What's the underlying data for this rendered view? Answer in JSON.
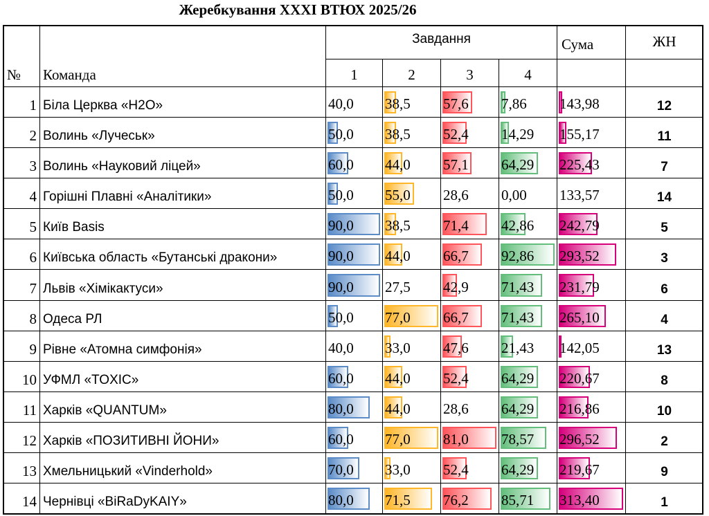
{
  "title": "Жеребкування XXXI ВТЮХ 2025/26",
  "table": {
    "header": {
      "tasks": "Завдання",
      "sum": "Сума",
      "rank": "ЖН",
      "number": "№",
      "team": "Команда",
      "task_numbers": [
        1,
        2,
        3,
        4
      ]
    },
    "bar_colors": [
      "#5b8cc8",
      "#ffb628",
      "#ff555a",
      "#63be7b",
      "#d6007b"
    ],
    "rows": [
      {
        "number": 1,
        "team": "Біла Церква «H2O»",
        "scores": [
          {
            "value": 40.0,
            "label": "40,0"
          },
          {
            "value": 38.5,
            "label": "38,5"
          },
          {
            "value": 57.6,
            "label": "57,6"
          },
          {
            "value": 7.86,
            "label": "7,86"
          }
        ],
        "sum": {
          "value": 143.98,
          "label": "143,98"
        },
        "rank": 12
      },
      {
        "number": 2,
        "team": "Волинь «Лучеськ»",
        "scores": [
          {
            "value": 50.0,
            "label": "50,0"
          },
          {
            "value": 38.5,
            "label": "38,5"
          },
          {
            "value": 52.4,
            "label": "52,4"
          },
          {
            "value": 14.29,
            "label": "14,29"
          }
        ],
        "sum": {
          "value": 155.17,
          "label": "155,17"
        },
        "rank": 11
      },
      {
        "number": 3,
        "team": "Волинь «Науковий ліцей»",
        "scores": [
          {
            "value": 60.0,
            "label": "60,0"
          },
          {
            "value": 44.0,
            "label": "44,0"
          },
          {
            "value": 57.1,
            "label": "57,1"
          },
          {
            "value": 64.29,
            "label": "64,29"
          }
        ],
        "sum": {
          "value": 225.43,
          "label": "225,43"
        },
        "rank": 7
      },
      {
        "number": 4,
        "team": "Горішні Плавні «Аналітики»",
        "scores": [
          {
            "value": 50.0,
            "label": "50,0"
          },
          {
            "value": 55.0,
            "label": "55,0"
          },
          {
            "value": 28.6,
            "label": "28,6"
          },
          {
            "value": 0,
            "label": "0,00"
          }
        ],
        "sum": {
          "value": 133.57,
          "label": "133,57"
        },
        "rank": 14
      },
      {
        "number": 5,
        "team": "Київ Basis",
        "scores": [
          {
            "value": 90.0,
            "label": "90,0"
          },
          {
            "value": 38.5,
            "label": "38,5"
          },
          {
            "value": 71.4,
            "label": "71,4"
          },
          {
            "value": 42.86,
            "label": "42,86"
          }
        ],
        "sum": {
          "value": 242.79,
          "label": "242,79"
        },
        "rank": 5
      },
      {
        "number": 6,
        "team": "Київська область «Бутанські дракони»",
        "scores": [
          {
            "value": 90.0,
            "label": "90,0"
          },
          {
            "value": 44.0,
            "label": "44,0"
          },
          {
            "value": 66.7,
            "label": "66,7"
          },
          {
            "value": 92.86,
            "label": "92,86"
          }
        ],
        "sum": {
          "value": 293.52,
          "label": "293,52"
        },
        "rank": 3
      },
      {
        "number": 7,
        "team": "Львів «Хімікактуси»",
        "scores": [
          {
            "value": 90.0,
            "label": "90,0"
          },
          {
            "value": 27.5,
            "label": "27,5"
          },
          {
            "value": 42.9,
            "label": "42,9"
          },
          {
            "value": 71.43,
            "label": "71,43"
          }
        ],
        "sum": {
          "value": 231.79,
          "label": "231,79"
        },
        "rank": 6
      },
      {
        "number": 8,
        "team": "Одеса РЛ",
        "scores": [
          {
            "value": 50.0,
            "label": "50,0"
          },
          {
            "value": 77.0,
            "label": "77,0"
          },
          {
            "value": 66.7,
            "label": "66,7"
          },
          {
            "value": 71.43,
            "label": "71,43"
          }
        ],
        "sum": {
          "value": 265.1,
          "label": "265,10"
        },
        "rank": 4
      },
      {
        "number": 9,
        "team": "Рівне «Атомна симфонія»",
        "scores": [
          {
            "value": 40.0,
            "label": "40,0"
          },
          {
            "value": 33.0,
            "label": "33,0"
          },
          {
            "value": 47.6,
            "label": "47,6"
          },
          {
            "value": 21.43,
            "label": "21,43"
          }
        ],
        "sum": {
          "value": 142.05,
          "label": "142,05"
        },
        "rank": 13
      },
      {
        "number": 10,
        "team": "УФМЛ «TOXIC»",
        "scores": [
          {
            "value": 60.0,
            "label": "60,0"
          },
          {
            "value": 44.0,
            "label": "44,0"
          },
          {
            "value": 52.4,
            "label": "52,4"
          },
          {
            "value": 64.29,
            "label": "64,29"
          }
        ],
        "sum": {
          "value": 220.67,
          "label": "220,67"
        },
        "rank": 8
      },
      {
        "number": 11,
        "team": "Харків «QUANTUM»",
        "scores": [
          {
            "value": 80.0,
            "label": "80,0"
          },
          {
            "value": 44.0,
            "label": "44,0"
          },
          {
            "value": 28.6,
            "label": "28,6"
          },
          {
            "value": 64.29,
            "label": "64,29"
          }
        ],
        "sum": {
          "value": 216.86,
          "label": "216,86"
        },
        "rank": 10
      },
      {
        "number": 12,
        "team": "Харків «ПОЗИТИВНІ ЙОНИ»",
        "scores": [
          {
            "value": 60.0,
            "label": "60,0"
          },
          {
            "value": 77.0,
            "label": "77,0"
          },
          {
            "value": 81.0,
            "label": "81,0"
          },
          {
            "value": 78.57,
            "label": "78,57"
          }
        ],
        "sum": {
          "value": 296.52,
          "label": "296,52"
        },
        "rank": 2
      },
      {
        "number": 13,
        "team": "Хмельницький «Vinderhold»",
        "scores": [
          {
            "value": 70.0,
            "label": "70,0"
          },
          {
            "value": 33.0,
            "label": "33,0"
          },
          {
            "value": 52.4,
            "label": "52,4"
          },
          {
            "value": 64.29,
            "label": "64,29"
          }
        ],
        "sum": {
          "value": 219.67,
          "label": "219,67"
        },
        "rank": 9
      },
      {
        "number": 14,
        "team": "Чернівці «BiRaDyKAIY»",
        "scores": [
          {
            "value": 80.0,
            "label": "80,0"
          },
          {
            "value": 71.5,
            "label": "71,5"
          },
          {
            "value": 76.2,
            "label": "76,2"
          },
          {
            "value": 85.71,
            "label": "85,71"
          }
        ],
        "sum": {
          "value": 313.4,
          "label": "313,40"
        },
        "rank": 1
      }
    ]
  }
}
